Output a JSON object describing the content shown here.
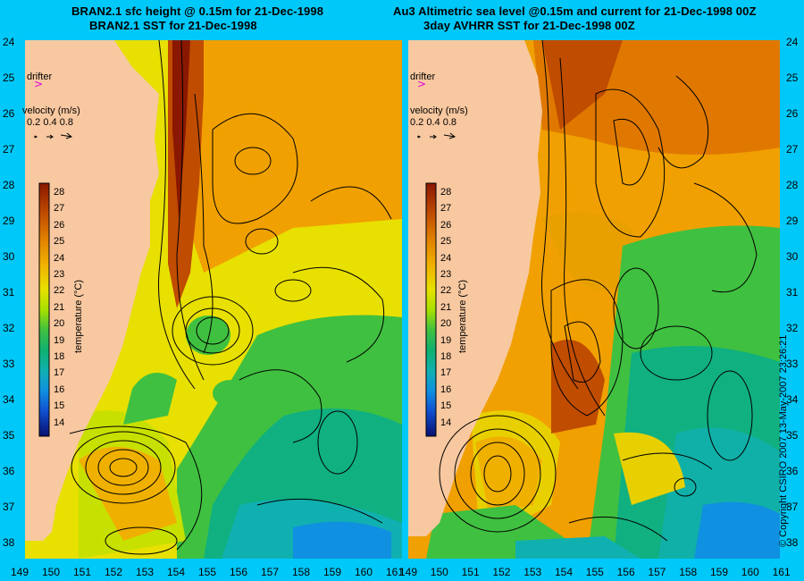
{
  "left_panel": {
    "title_line1": "BRAN2.1 sfc height @ 0.15m for 21-Dec-1998",
    "title_line2": "BRAN2.1 SST for 21-Dec-1998",
    "drifter_label": "drifter",
    "velocity_label": "velocity (m/s)",
    "velocity_scale": "0.2 0.4 0.8",
    "colorbar_title": "temperature (°C)"
  },
  "right_panel": {
    "title_line1": "Au3 Altimetric sea level  @0.15m and current for 21-Dec-1998 00Z",
    "title_line2": "3day AVHRR SST for 21-Dec-1998 00Z",
    "drifter_label": "drifter",
    "velocity_label": "velocity (m/s)",
    "velocity_scale": "0.2 0.4 0.8",
    "colorbar_title": "temperature (°C)"
  },
  "latitude_labels": [
    "24",
    "25",
    "26",
    "27",
    "28",
    "29",
    "30",
    "31",
    "32",
    "33",
    "34",
    "35",
    "36",
    "37",
    "38"
  ],
  "longitude_labels": [
    "149",
    "150",
    "151",
    "152",
    "153",
    "154",
    "155",
    "156",
    "157",
    "158",
    "159",
    "160",
    "161"
  ],
  "colorbar_ticks": [
    "28",
    "27",
    "26",
    "25",
    "24",
    "23",
    "22",
    "21",
    "20",
    "19",
    "18",
    "17",
    "16",
    "15",
    "14"
  ],
  "copyright": "© Copyright CSIRO 2007   13-May-2007 23:26:21",
  "colors": {
    "background": "#00c8f8",
    "land": "#f8c8a0",
    "drifter": "#e000e0"
  },
  "colorbar_scale": [
    "#2a0000",
    "#8a1800",
    "#c04c00",
    "#e07800",
    "#f0a000",
    "#e8d000",
    "#c8e000",
    "#88d820",
    "#40c040",
    "#10b070",
    "#10b0a8",
    "#1090d0",
    "#1060d8",
    "#1030b0",
    "#081070"
  ]
}
